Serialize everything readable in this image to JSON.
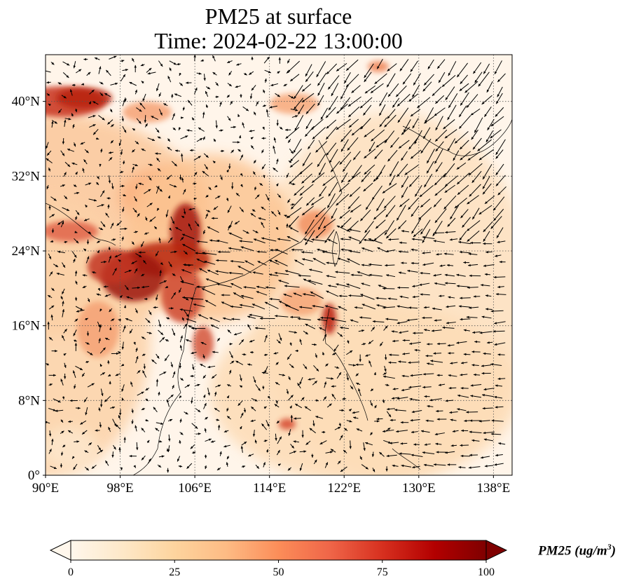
{
  "title": {
    "line1": "PM25 at surface",
    "line2": "Time: 2024-02-22 13:00:00"
  },
  "map": {
    "lon_range": [
      90,
      140
    ],
    "lat_range": [
      0,
      45
    ],
    "lon_ticks": [
      90,
      98,
      106,
      114,
      122,
      130,
      138
    ],
    "lon_tick_labels": [
      "90°E",
      "98°E",
      "106°E",
      "114°E",
      "122°E",
      "130°E",
      "138°E"
    ],
    "lat_ticks": [
      0,
      8,
      16,
      24,
      32,
      40
    ],
    "lat_tick_labels": [
      "0°",
      "8°N",
      "16°N",
      "24°N",
      "32°N",
      "40°N"
    ],
    "gridlines": "dotted",
    "coastlines": true,
    "field": "PM25",
    "overlay": "wind vectors"
  },
  "colorbar": {
    "label": "PM25 (ug/m",
    "label_superscript": "3",
    "label_close": ")",
    "ticks": [
      0,
      25,
      50,
      75,
      100
    ],
    "tick_labels": [
      "0",
      "25",
      "50",
      "75",
      "100"
    ],
    "range": [
      0,
      100
    ],
    "extend": "both",
    "colormap": "OrRd",
    "colors": [
      "#fff7ec",
      "#fee8c8",
      "#fdd49e",
      "#fdbb84",
      "#fc8d59",
      "#ef6548",
      "#d7301f",
      "#b30000",
      "#7f0000"
    ]
  }
}
